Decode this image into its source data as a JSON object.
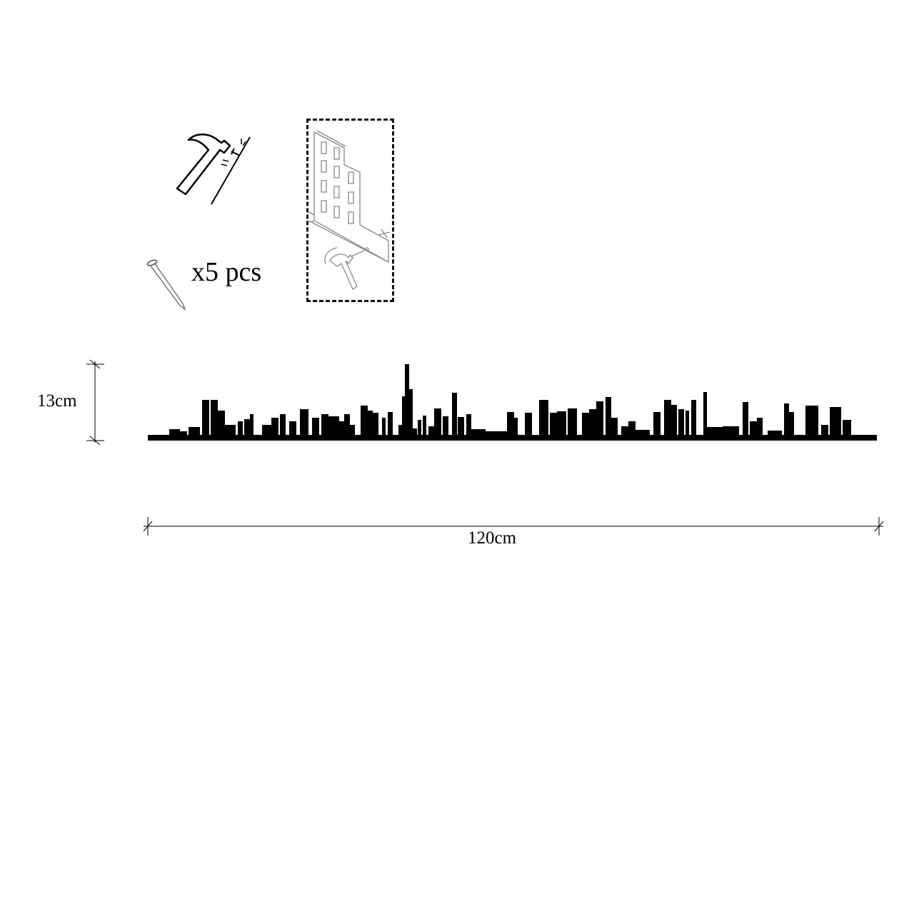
{
  "kit": {
    "hammer_icon": "hammer-striking-wall-icon",
    "nail_icon": "nail-icon",
    "nail_quantity": "x5 pcs",
    "installation_icon": "wall-mount-installation-icon"
  },
  "dimensions": {
    "height_label": "13cm",
    "width_label": "120cm"
  },
  "product": {
    "icon": "city-skyline-silhouette",
    "color": "#000000"
  }
}
